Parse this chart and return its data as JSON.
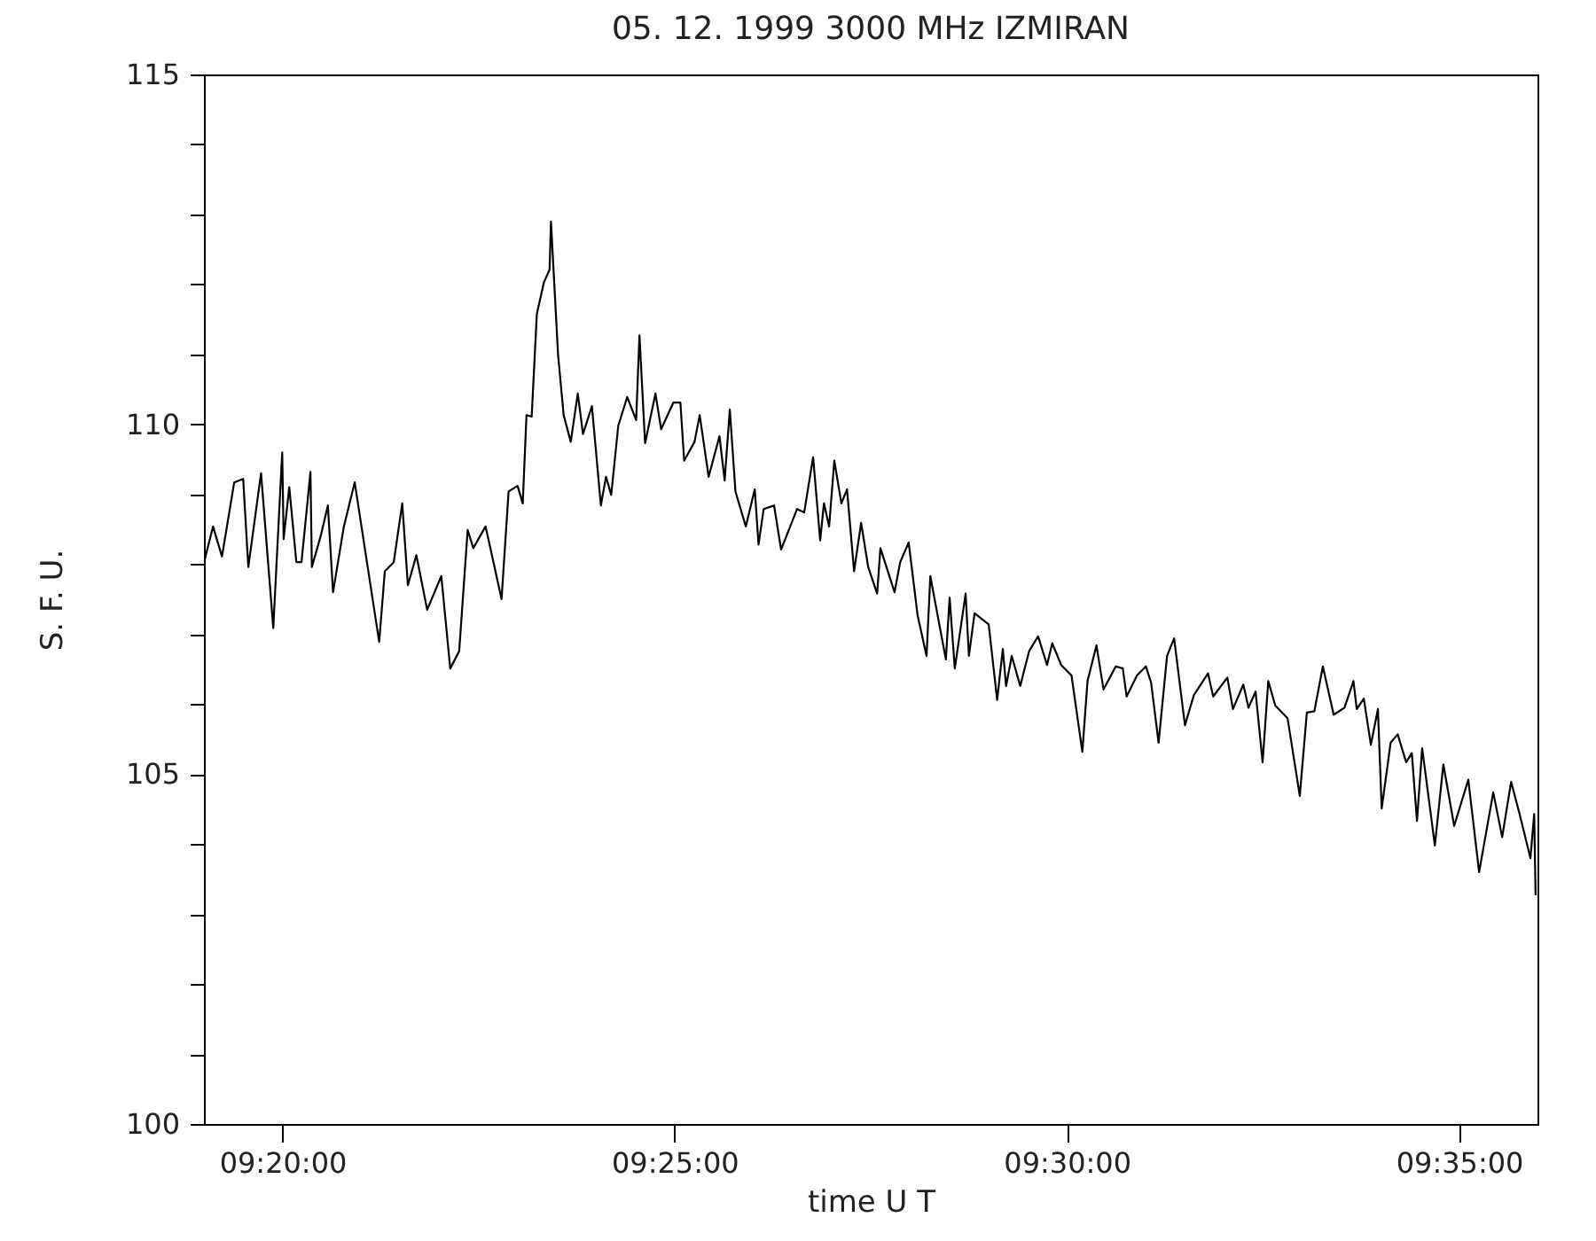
{
  "chart_data": {
    "type": "line",
    "title": "05.  12.  1999    3000 MHz    IZMIRAN",
    "xlabel": "time   U T",
    "ylabel": "S. F. U.",
    "xlim": [
      9.3166667,
      9.6
    ],
    "ylim": [
      100,
      115
    ],
    "xticks": [
      {
        "value": 9.3333333,
        "label": "09:20:00"
      },
      {
        "value": 9.4166667,
        "label": "09:25:00"
      },
      {
        "value": 9.5,
        "label": "09:30:00"
      },
      {
        "value": 9.5833333,
        "label": "09:35:00"
      }
    ],
    "yticks": [
      100,
      {
        "value": 101,
        "label": null
      },
      {
        "value": 102,
        "label": null
      },
      {
        "value": 103,
        "label": null
      },
      {
        "value": 104,
        "label": null
      },
      105,
      {
        "value": 106,
        "label": null
      },
      {
        "value": 107,
        "label": null
      },
      {
        "value": 108,
        "label": null
      },
      {
        "value": 109,
        "label": null
      },
      110,
      {
        "value": 111,
        "label": null
      },
      {
        "value": 112,
        "label": null
      },
      {
        "value": 113,
        "label": null
      },
      {
        "value": 114,
        "label": null
      },
      115
    ],
    "grid": false,
    "marker": "none",
    "line_style": "solid",
    "series": [
      {
        "color": "#000000",
        "x": [
          9.3167,
          9.3186,
          9.3205,
          9.3231,
          9.325,
          9.3261,
          9.3288,
          9.3314,
          9.3333,
          9.3336,
          9.3348,
          9.3363,
          9.3374,
          9.3393,
          9.3396,
          9.3415,
          9.343,
          9.3441,
          9.3464,
          9.3487,
          9.3513,
          9.3539,
          9.3551,
          9.357,
          9.3588,
          9.36,
          9.3618,
          9.3641,
          9.3671,
          9.369,
          9.3709,
          9.3727,
          9.3739,
          9.3765,
          9.3776,
          9.3799,
          9.3814,
          9.3833,
          9.3844,
          9.3852,
          9.3863,
          9.3874,
          9.3889,
          9.3901,
          9.3904,
          9.3919,
          9.3931,
          9.3946,
          9.3961,
          9.3972,
          9.3991,
          9.401,
          9.4021,
          9.4032,
          9.4047,
          9.4066,
          9.4085,
          9.4092,
          9.4104,
          9.4126,
          9.4138,
          9.4164,
          9.4179,
          9.4187,
          9.4209,
          9.422,
          9.4239,
          9.4262,
          9.4273,
          9.4284,
          9.4296,
          9.4318,
          9.4337,
          9.4345,
          9.4356,
          9.4378,
          9.4393,
          9.4427,
          9.4442,
          9.4461,
          9.4476,
          9.4484,
          9.4495,
          9.4506,
          9.4521,
          9.4533,
          9.4548,
          9.4563,
          9.4578,
          9.4597,
          9.4604,
          9.4634,
          9.4646,
          9.4664,
          9.4683,
          9.4702,
          9.471,
          9.4743,
          9.4751,
          9.4762,
          9.4785,
          9.4792,
          9.4804,
          9.4834,
          9.4852,
          9.4864,
          9.4871,
          9.4883,
          9.4901,
          9.492,
          9.4939,
          9.4958,
          9.4969,
          9.4988,
          9.501,
          9.5033,
          9.5044,
          9.5063,
          9.5078,
          9.5104,
          9.5119,
          9.5127,
          9.5149,
          9.5168,
          9.5179,
          9.5195,
          9.5213,
          9.5228,
          9.5251,
          9.527,
          9.53,
          9.5311,
          9.5341,
          9.5353,
          9.5375,
          9.5386,
          9.5401,
          9.5416,
          9.5428,
          9.5443,
          9.5469,
          9.5495,
          9.551,
          9.5526,
          9.5544,
          9.5567,
          9.559,
          9.5609,
          9.5616,
          9.5631,
          9.5646,
          9.5661,
          9.5669,
          9.5688,
          9.5703,
          9.5721,
          9.5733,
          9.5744,
          9.5755,
          9.5782,
          9.58,
          9.5823,
          9.5853,
          9.5876,
          9.5906,
          9.5925,
          9.5944,
          9.5962,
          9.5985,
          9.5993,
          9.5996
        ],
        "values": [
          108.03,
          108.54,
          108.11,
          109.17,
          109.22,
          107.96,
          109.3,
          107.09,
          109.6,
          108.36,
          109.1,
          108.03,
          108.03,
          109.32,
          107.96,
          108.41,
          108.84,
          107.6,
          108.54,
          109.17,
          108.03,
          106.89,
          107.9,
          108.03,
          108.87,
          107.7,
          108.13,
          107.35,
          107.83,
          106.51,
          106.76,
          108.49,
          108.23,
          108.54,
          108.21,
          107.5,
          109.04,
          109.12,
          108.87,
          110.13,
          110.11,
          111.58,
          112.03,
          112.21,
          112.9,
          111.0,
          110.13,
          109.75,
          110.44,
          109.86,
          110.26,
          108.84,
          109.25,
          108.99,
          109.98,
          110.39,
          110.06,
          111.27,
          109.73,
          110.44,
          109.93,
          110.31,
          110.31,
          109.48,
          109.75,
          110.13,
          109.25,
          109.83,
          109.2,
          110.21,
          109.04,
          108.54,
          109.07,
          108.28,
          108.79,
          108.84,
          108.21,
          108.79,
          108.74,
          109.53,
          108.34,
          108.87,
          108.54,
          109.48,
          108.87,
          109.07,
          107.9,
          108.59,
          107.96,
          107.58,
          108.23,
          107.6,
          108.03,
          108.31,
          107.27,
          106.69,
          107.83,
          106.64,
          107.52,
          106.51,
          107.58,
          106.69,
          107.3,
          107.14,
          106.06,
          106.79,
          106.26,
          106.69,
          106.26,
          106.76,
          106.97,
          106.56,
          106.87,
          106.56,
          106.41,
          105.32,
          106.33,
          106.84,
          106.21,
          106.54,
          106.51,
          106.11,
          106.41,
          106.54,
          106.31,
          105.45,
          106.69,
          106.94,
          105.7,
          106.13,
          106.44,
          106.11,
          106.38,
          105.93,
          106.28,
          105.95,
          106.18,
          105.17,
          106.33,
          105.98,
          105.8,
          104.69,
          105.88,
          105.9,
          106.54,
          105.85,
          105.95,
          106.33,
          105.93,
          106.08,
          105.42,
          105.93,
          104.51,
          105.45,
          105.57,
          105.17,
          105.3,
          104.33,
          105.37,
          103.98,
          105.14,
          104.26,
          104.92,
          103.6,
          104.74,
          104.1,
          104.89,
          104.43,
          103.8,
          104.43,
          103.27
        ]
      }
    ]
  }
}
